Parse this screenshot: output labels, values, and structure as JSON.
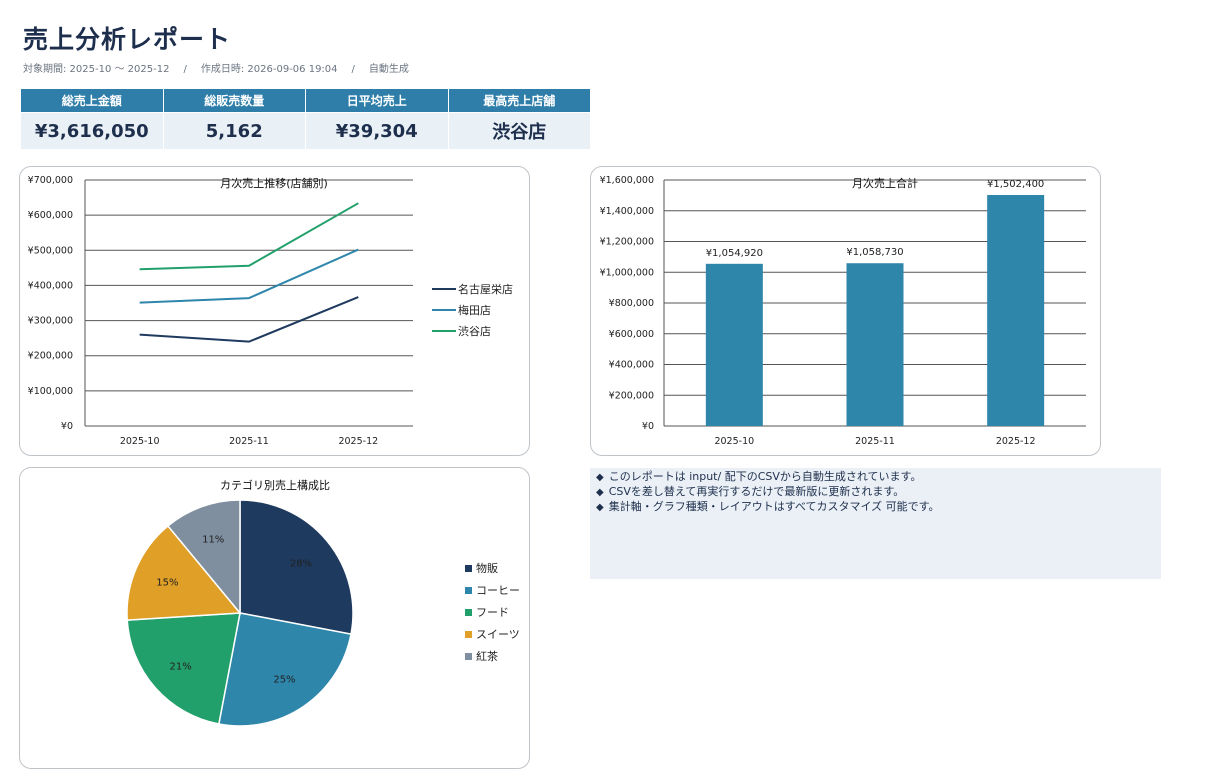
{
  "header": {
    "title": "売上分析レポート",
    "period": "対象期間: 2025-10 〜 2025-12",
    "created": "作成日時: 2026-09-06 19:04",
    "mode": "自動生成",
    "separator": "/"
  },
  "kpis": [
    {
      "label": "総売上金額",
      "value": "¥3,616,050"
    },
    {
      "label": "総販売数量",
      "value": "5,162"
    },
    {
      "label": "日平均売上",
      "value": "¥39,304"
    },
    {
      "label": "最高売上店舗",
      "value": "渋谷店"
    }
  ],
  "notes": {
    "bullet": "◆",
    "items": [
      "このレポートは input/ 配下のCSVから自動生成されています。",
      "CSVを差し替えて再実行するだけで最新版に更新されます。",
      "集計軸・グラフ種類・レイアウトはすべてカスタマイズ 可能です。"
    ]
  },
  "chart_data": [
    {
      "type": "line",
      "title": "月次売上推移(店舗別)",
      "categories": [
        "2025-10",
        "2025-11",
        "2025-12"
      ],
      "ylim": [
        0,
        700000
      ],
      "yticks": [
        0,
        100000,
        200000,
        300000,
        400000,
        500000,
        600000,
        700000
      ],
      "ytick_labels": [
        "¥0",
        "¥100,000",
        "¥200,000",
        "¥300,000",
        "¥400,000",
        "¥500,000",
        "¥600,000",
        "¥700,000"
      ],
      "grid": true,
      "legend": "right",
      "series": [
        {
          "name": "名古屋栄店",
          "color": "#1e3a5f",
          "values": [
            260000,
            240000,
            367000
          ]
        },
        {
          "name": "梅田店",
          "color": "#2e86ab",
          "values": [
            351000,
            364000,
            502000
          ]
        },
        {
          "name": "渋谷店",
          "color": "#22a06b",
          "values": [
            446000,
            456000,
            634000
          ]
        }
      ]
    },
    {
      "type": "bar",
      "title": "月次売上合計",
      "categories": [
        "2025-10",
        "2025-11",
        "2025-12"
      ],
      "values": [
        1054920,
        1058730,
        1502400
      ],
      "data_labels": [
        "¥1,054,920",
        "¥1,058,730",
        "¥1,502,400"
      ],
      "color": "#2e86ab",
      "ylim": [
        0,
        1600000
      ],
      "yticks": [
        0,
        200000,
        400000,
        600000,
        800000,
        1000000,
        1200000,
        1400000,
        1600000
      ],
      "ytick_labels": [
        "¥0",
        "¥200,000",
        "¥400,000",
        "¥600,000",
        "¥800,000",
        "¥1,000,000",
        "¥1,200,000",
        "¥1,400,000",
        "¥1,600,000"
      ],
      "grid": true
    },
    {
      "type": "pie",
      "title": "カテゴリ別売上構成比",
      "legend": "right",
      "slices": [
        {
          "name": "物販",
          "value": 28,
          "label": "28%",
          "color": "#1e3a5f"
        },
        {
          "name": "コーヒー",
          "value": 25,
          "label": "25%",
          "color": "#2e86ab"
        },
        {
          "name": "フード",
          "value": 21,
          "label": "21%",
          "color": "#22a06b"
        },
        {
          "name": "スイーツ",
          "value": 15,
          "label": "15%",
          "color": "#e09f27"
        },
        {
          "name": "紅茶",
          "value": 11,
          "label": "11%",
          "color": "#7f8fa0"
        }
      ]
    }
  ]
}
